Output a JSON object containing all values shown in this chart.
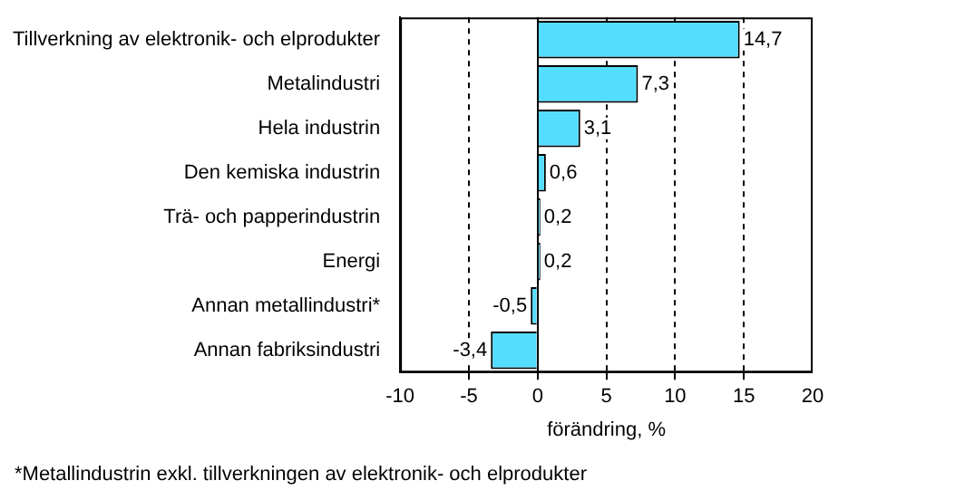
{
  "chart_data": {
    "type": "bar",
    "orientation": "horizontal",
    "categories": [
      "Tillverkning av elektronik- och elprodukter",
      "Metalindustri",
      "Hela industrin",
      "Den kemiska industrin",
      "Trä- och papperindustrin",
      "Energi",
      "Annan metallindustri*",
      "Annan fabriksindustri"
    ],
    "values": [
      14.7,
      7.3,
      3.1,
      0.6,
      0.2,
      0.2,
      -0.5,
      -3.4
    ],
    "value_labels": [
      "14,7",
      "7,3",
      "3,1",
      "0,6",
      "0,2",
      "0,2",
      "-0,5",
      "-3,4"
    ],
    "color": "#55ddff",
    "xlim": [
      -10,
      20
    ],
    "xticks": [
      -10,
      -5,
      0,
      5,
      10,
      15,
      20
    ],
    "grid": "x",
    "xlabel": "förändring, %",
    "annotations": [
      "*Metallindustrin exkl. tillverkningen av elektronik- och elprodukter"
    ]
  }
}
